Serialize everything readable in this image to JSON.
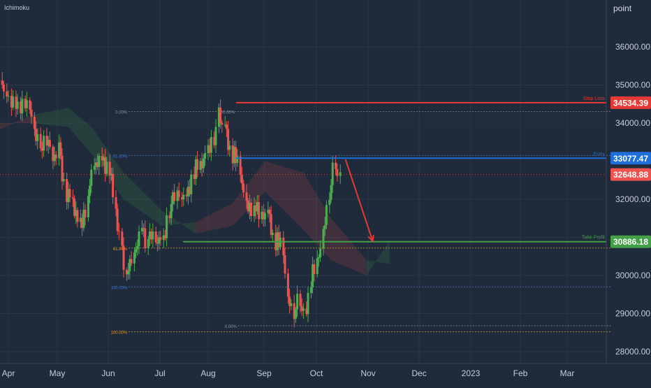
{
  "indicator_label": "Ichimoku",
  "theme": {
    "background": "#1f2a3a",
    "grid": "#2a3648",
    "axis_text": "#c8ced8",
    "up": "#26a69a",
    "up_body": "#4caf50",
    "down": "#ef5350",
    "stop_loss": "#e53935",
    "entry": "#1e6fd9",
    "take_profit": "#43a047",
    "last_price": "#ef5350",
    "fib_blue": "#4a7fd0",
    "fib_orange": "#e0a030",
    "fib_grey": "#8a94a6"
  },
  "chart_data": {
    "type": "candlestick",
    "title": "",
    "ylabel": "point",
    "ylim": [
      27500,
      37200
    ],
    "y_ticks": [
      28000,
      29000,
      30000,
      31000,
      32000,
      34000,
      35000,
      36000
    ],
    "y_tick_labels": [
      "28000.00",
      "29000.00",
      "30000.00",
      "",
      "32000.00",
      "34000.00",
      "35000.00",
      "36000.00"
    ],
    "x_labels": [
      "Apr",
      "May",
      "Jun",
      "Jul",
      "Aug",
      "Sep",
      "Oct",
      "Nov",
      "Dec",
      "2023",
      "Feb",
      "Mar"
    ],
    "grid": true,
    "price_levels": [
      {
        "label": "Stop Loss",
        "value": 34534.39,
        "value_text": "34534.39",
        "kind": "stop_loss"
      },
      {
        "label": "Entry",
        "value": 33077.47,
        "value_text": "33077.47",
        "kind": "entry"
      },
      {
        "label": "",
        "value": 32648.88,
        "value_text": "32648.88",
        "kind": "last_price"
      },
      {
        "label": "Take Profit",
        "value": 30886.18,
        "value_text": "30886.18",
        "kind": "take_profit"
      }
    ],
    "fib_levels": [
      {
        "label": "0.00%",
        "value": 34300,
        "color": "grey",
        "from": 0.172,
        "to": 0.94
      },
      {
        "label": "100.00%",
        "value": 34300,
        "color": "grey",
        "from": 0.337,
        "to": 0.337
      },
      {
        "label": "61.80%",
        "value": 33150,
        "color": "blue",
        "from": 0.172,
        "to": 0.94
      },
      {
        "label": "61.80%",
        "value": 30720,
        "color": "orange",
        "from": 0.172,
        "to": 0.94
      },
      {
        "label": "100.00%",
        "value": 29700,
        "color": "blue",
        "from": 0.172,
        "to": 0.94
      },
      {
        "label": "0.00%",
        "value": 28680,
        "color": "grey",
        "from": 0.34,
        "to": 0.94
      },
      {
        "label": "100.00%",
        "value": 28520,
        "color": "orange",
        "from": 0.172,
        "to": 0.94
      }
    ],
    "projection_arrow": {
      "from": {
        "x": "2022-10-31",
        "y": 32900
      },
      "to": {
        "x": "2022-11-15",
        "y": 30900
      }
    },
    "series": [
      {
        "name": "",
        "points": [
          {
            "d": "2022-03-25",
            "c": 35100
          },
          {
            "d": "2022-03-31",
            "c": 34700
          },
          {
            "d": "2022-04-06",
            "c": 34400
          },
          {
            "d": "2022-04-12",
            "c": 34650
          },
          {
            "d": "2022-04-18",
            "c": 33900
          },
          {
            "d": "2022-04-22",
            "c": 33400
          },
          {
            "d": "2022-04-26",
            "c": 33700
          },
          {
            "d": "2022-04-30",
            "c": 33000
          },
          {
            "d": "2022-05-04",
            "c": 33300
          },
          {
            "d": "2022-05-09",
            "c": 32200
          },
          {
            "d": "2022-05-13",
            "c": 31900
          },
          {
            "d": "2022-05-18",
            "c": 31300
          },
          {
            "d": "2022-05-23",
            "c": 32000
          },
          {
            "d": "2022-05-27",
            "c": 32900
          },
          {
            "d": "2022-06-01",
            "c": 33000
          },
          {
            "d": "2022-06-06",
            "c": 32900
          },
          {
            "d": "2022-06-10",
            "c": 31600
          },
          {
            "d": "2022-06-14",
            "c": 30800
          },
          {
            "d": "2022-06-17",
            "c": 29950
          },
          {
            "d": "2022-06-22",
            "c": 30500
          },
          {
            "d": "2022-06-27",
            "c": 31200
          },
          {
            "d": "2022-07-01",
            "c": 30900
          },
          {
            "d": "2022-07-06",
            "c": 31000
          },
          {
            "d": "2022-07-11",
            "c": 30900
          },
          {
            "d": "2022-07-15",
            "c": 31800
          },
          {
            "d": "2022-07-20",
            "c": 32100
          },
          {
            "d": "2022-07-26",
            "c": 32000
          },
          {
            "d": "2022-07-31",
            "c": 32800
          },
          {
            "d": "2022-08-04",
            "c": 32800
          },
          {
            "d": "2022-08-09",
            "c": 33300
          },
          {
            "d": "2022-08-13",
            "c": 33700
          },
          {
            "d": "2022-08-16",
            "c": 34150
          },
          {
            "d": "2022-08-20",
            "c": 33900
          },
          {
            "d": "2022-08-25",
            "c": 33200
          },
          {
            "d": "2022-08-30",
            "c": 32800
          },
          {
            "d": "2022-09-03",
            "c": 31900
          },
          {
            "d": "2022-09-08",
            "c": 31800
          },
          {
            "d": "2022-09-13",
            "c": 31500
          },
          {
            "d": "2022-09-17",
            "c": 31700
          },
          {
            "d": "2022-09-22",
            "c": 30900
          },
          {
            "d": "2022-09-27",
            "c": 30700
          },
          {
            "d": "2022-09-30",
            "c": 29500
          },
          {
            "d": "2022-10-04",
            "c": 29100
          },
          {
            "d": "2022-10-08",
            "c": 29300
          },
          {
            "d": "2022-10-12",
            "c": 29000
          },
          {
            "d": "2022-10-15",
            "c": 29900
          },
          {
            "d": "2022-10-19",
            "c": 30200
          },
          {
            "d": "2022-10-23",
            "c": 31100
          },
          {
            "d": "2022-10-27",
            "c": 32200
          },
          {
            "d": "2022-10-31",
            "c": 32900
          },
          {
            "d": "2022-11-03",
            "c": 32650
          }
        ]
      }
    ],
    "ichimoku_cloud": [
      {
        "d": "2022-03-20",
        "a": 33700,
        "b": 34000
      },
      {
        "d": "2022-04-15",
        "a": 34200,
        "b": 34000
      },
      {
        "d": "2022-05-10",
        "a": 34400,
        "b": 33900
      },
      {
        "d": "2022-05-25",
        "a": 33900,
        "b": 33200
      },
      {
        "d": "2022-06-15",
        "a": 32700,
        "b": 32000
      },
      {
        "d": "2022-07-10",
        "a": 31700,
        "b": 31300
      },
      {
        "d": "2022-08-01",
        "a": 31100,
        "b": 31400
      },
      {
        "d": "2022-08-25",
        "a": 31300,
        "b": 31900
      },
      {
        "d": "2022-09-15",
        "a": 32200,
        "b": 33000
      },
      {
        "d": "2022-10-10",
        "a": 31200,
        "b": 32700
      },
      {
        "d": "2022-10-28",
        "a": 30400,
        "b": 31500
      },
      {
        "d": "2022-11-20",
        "a": 30000,
        "b": 30400
      },
      {
        "d": "2022-12-05",
        "a": 30900,
        "b": 30300
      }
    ]
  }
}
